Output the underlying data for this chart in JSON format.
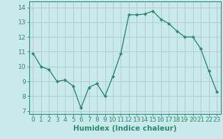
{
  "x": [
    0,
    1,
    2,
    3,
    4,
    5,
    6,
    7,
    8,
    9,
    10,
    11,
    12,
    13,
    14,
    15,
    16,
    17,
    18,
    19,
    20,
    21,
    22,
    23
  ],
  "y": [
    10.9,
    10.0,
    9.8,
    9.0,
    9.1,
    8.7,
    7.2,
    8.6,
    8.85,
    8.0,
    9.35,
    10.9,
    13.5,
    13.5,
    13.55,
    13.75,
    13.2,
    12.9,
    12.4,
    12.0,
    12.0,
    11.2,
    9.7,
    8.3
  ],
  "line_color": "#2e8b6e",
  "marker": "D",
  "marker_size": 2.2,
  "line_width": 1.0,
  "bg_color": "#c8eaea",
  "grid_color": "#b0c8c8",
  "xlabel": "Humidex (Indice chaleur)",
  "xlabel_fontsize": 7.5,
  "xlim": [
    -0.5,
    23.5
  ],
  "ylim": [
    6.8,
    14.4
  ],
  "yticks": [
    7,
    8,
    9,
    10,
    11,
    12,
    13,
    14
  ],
  "xticks": [
    0,
    1,
    2,
    3,
    4,
    5,
    6,
    7,
    8,
    9,
    10,
    11,
    12,
    13,
    14,
    15,
    16,
    17,
    18,
    19,
    20,
    21,
    22,
    23
  ],
  "tick_fontsize": 6.5,
  "grid_linewidth": 0.6,
  "spine_color": "#2e8b6e"
}
